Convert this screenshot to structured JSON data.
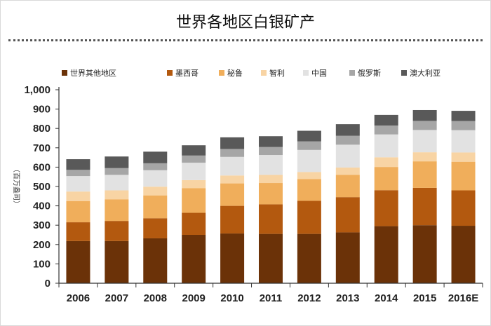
{
  "chart_data": {
    "type": "bar",
    "stacked": true,
    "title": "世界各地区白银矿产",
    "ylabel": "（百万盎司）",
    "xlabel": "",
    "ylim": [
      0,
      1000
    ],
    "yticks": [
      "0",
      "100",
      "200",
      "300",
      "400",
      "500",
      "600",
      "700",
      "800",
      "900",
      "1,000"
    ],
    "ytick_values": [
      0,
      100,
      200,
      300,
      400,
      500,
      600,
      700,
      800,
      900,
      1000
    ],
    "grid": false,
    "legend_position": "top",
    "categories": [
      "2006",
      "2007",
      "2008",
      "2009",
      "2010",
      "2011",
      "2012",
      "2013",
      "2014",
      "2015",
      "2016E"
    ],
    "series": [
      {
        "name": "世界其他地区",
        "color": "#6b3208",
        "values": [
          218,
          218,
          232,
          250,
          257,
          255,
          255,
          263,
          295,
          300,
          297
        ]
      },
      {
        "name": "墨西哥",
        "color": "#b3590f",
        "values": [
          97,
          104,
          104,
          114,
          143,
          153,
          171,
          182,
          186,
          193,
          183
        ]
      },
      {
        "name": "秘鲁",
        "color": "#f0ae5b",
        "values": [
          110,
          112,
          118,
          127,
          116,
          110,
          112,
          115,
          120,
          137,
          148
        ]
      },
      {
        "name": "智利",
        "color": "#f8d4a4",
        "values": [
          49,
          46,
          45,
          42,
          41,
          42,
          37,
          38,
          50,
          47,
          48
        ]
      },
      {
        "name": "中国",
        "color": "#e2e2e2",
        "values": [
          80,
          80,
          85,
          90,
          96,
          103,
          114,
          118,
          118,
          115,
          115
        ]
      },
      {
        "name": "俄罗斯",
        "color": "#a6a6a6",
        "values": [
          32,
          35,
          36,
          37,
          41,
          41,
          44,
          46,
          46,
          47,
          47
        ]
      },
      {
        "name": "澳大利亚",
        "color": "#595959",
        "values": [
          55,
          60,
          60,
          53,
          60,
          56,
          55,
          60,
          55,
          56,
          53
        ]
      }
    ]
  }
}
